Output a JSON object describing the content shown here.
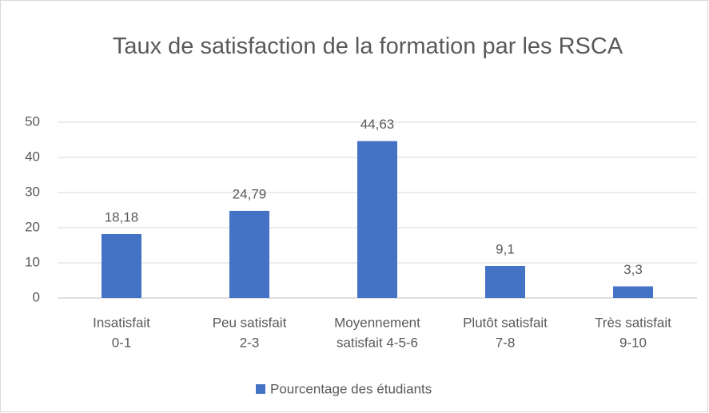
{
  "chart_data": {
    "type": "bar",
    "title": "Taux de satisfaction de la formation par les RSCA",
    "categories": [
      [
        "Insatisfait",
        "0-1"
      ],
      [
        "Peu satisfait",
        "2-3"
      ],
      [
        "Moyennement",
        "satisfait 4-5-6"
      ],
      [
        "Plutôt satisfait",
        "7-8"
      ],
      [
        "Très satisfait",
        "9-10"
      ]
    ],
    "series": [
      {
        "name": "Pourcentage des étudiants",
        "color": "#4472c4",
        "values": [
          18.18,
          24.79,
          44.63,
          9.1,
          3.3
        ],
        "value_labels": [
          "18,18",
          "24,79",
          "44,63",
          "9,1",
          "3,3"
        ]
      }
    ],
    "ylim": [
      0,
      50
    ],
    "yticks": [
      0,
      10,
      20,
      30,
      40,
      50
    ],
    "grid": true,
    "legend": "bottom"
  }
}
